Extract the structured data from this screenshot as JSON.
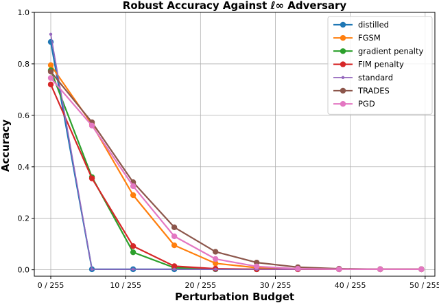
{
  "chart_data": {
    "type": "line",
    "title": "Robust Accuracy Against ℓ∞ Adversary",
    "xlabel": "Perturbation Budget",
    "ylabel": "Accuracy",
    "xlim": [
      -2.2,
      51.3
    ],
    "ylim": [
      -0.025,
      1.0
    ],
    "xticks": [
      {
        "value": 0,
        "label": "0 / 255"
      },
      {
        "value": 10,
        "label": "10 / 255"
      },
      {
        "value": 20,
        "label": "20 / 255"
      },
      {
        "value": 30,
        "label": "30 / 255"
      },
      {
        "value": 40,
        "label": "40 / 255"
      },
      {
        "value": 50,
        "label": "50 / 255"
      }
    ],
    "yticks": [
      {
        "value": 0.0,
        "label": "0.0"
      },
      {
        "value": 0.2,
        "label": "0.2"
      },
      {
        "value": 0.4,
        "label": "0.4"
      },
      {
        "value": 0.6,
        "label": "0.6"
      },
      {
        "value": 0.8,
        "label": "0.8"
      },
      {
        "value": 1.0,
        "label": "1.0"
      }
    ],
    "grid": true,
    "legend_position": "top-right",
    "x": [
      0,
      5.5,
      11,
      16.5,
      22,
      27.5,
      33,
      38.5,
      44,
      49.5
    ],
    "series": [
      {
        "name": "distilled",
        "color": "#1f77b4",
        "marker": "circle",
        "values": [
          0.885,
          0.002,
          0.002,
          0.002,
          0.002,
          0.002,
          0.002,
          0.002,
          0.002,
          0.002
        ]
      },
      {
        "name": "FGSM",
        "color": "#ff7f0e",
        "marker": "circle",
        "values": [
          0.795,
          0.565,
          0.29,
          0.095,
          0.025,
          0.008,
          0.003,
          0.002,
          0.002,
          0.002
        ]
      },
      {
        "name": "gradient penalty",
        "color": "#2ca02c",
        "marker": "circle",
        "values": [
          0.775,
          0.36,
          0.068,
          0.008,
          0.003,
          0.002,
          0.002,
          0.002,
          0.002,
          0.002
        ]
      },
      {
        "name": "FIM penalty",
        "color": "#d62728",
        "marker": "circle",
        "values": [
          0.72,
          0.355,
          0.092,
          0.014,
          0.004,
          0.002,
          0.002,
          0.002,
          0.002,
          0.002
        ]
      },
      {
        "name": "standard",
        "color": "#9467bd",
        "marker": "small",
        "values": [
          0.915,
          0.002,
          0.002,
          0.002,
          0.002,
          0.002,
          0.002,
          0.002,
          0.002,
          0.002
        ]
      },
      {
        "name": "TRADES",
        "color": "#8c564b",
        "marker": "circle",
        "values": [
          0.77,
          0.573,
          0.34,
          0.165,
          0.07,
          0.028,
          0.01,
          0.004,
          0.002,
          0.002
        ]
      },
      {
        "name": "PGD",
        "color": "#e377c2",
        "marker": "circle",
        "values": [
          0.745,
          0.56,
          0.325,
          0.13,
          0.042,
          0.013,
          0.004,
          0.002,
          0.002,
          0.002
        ]
      }
    ]
  }
}
